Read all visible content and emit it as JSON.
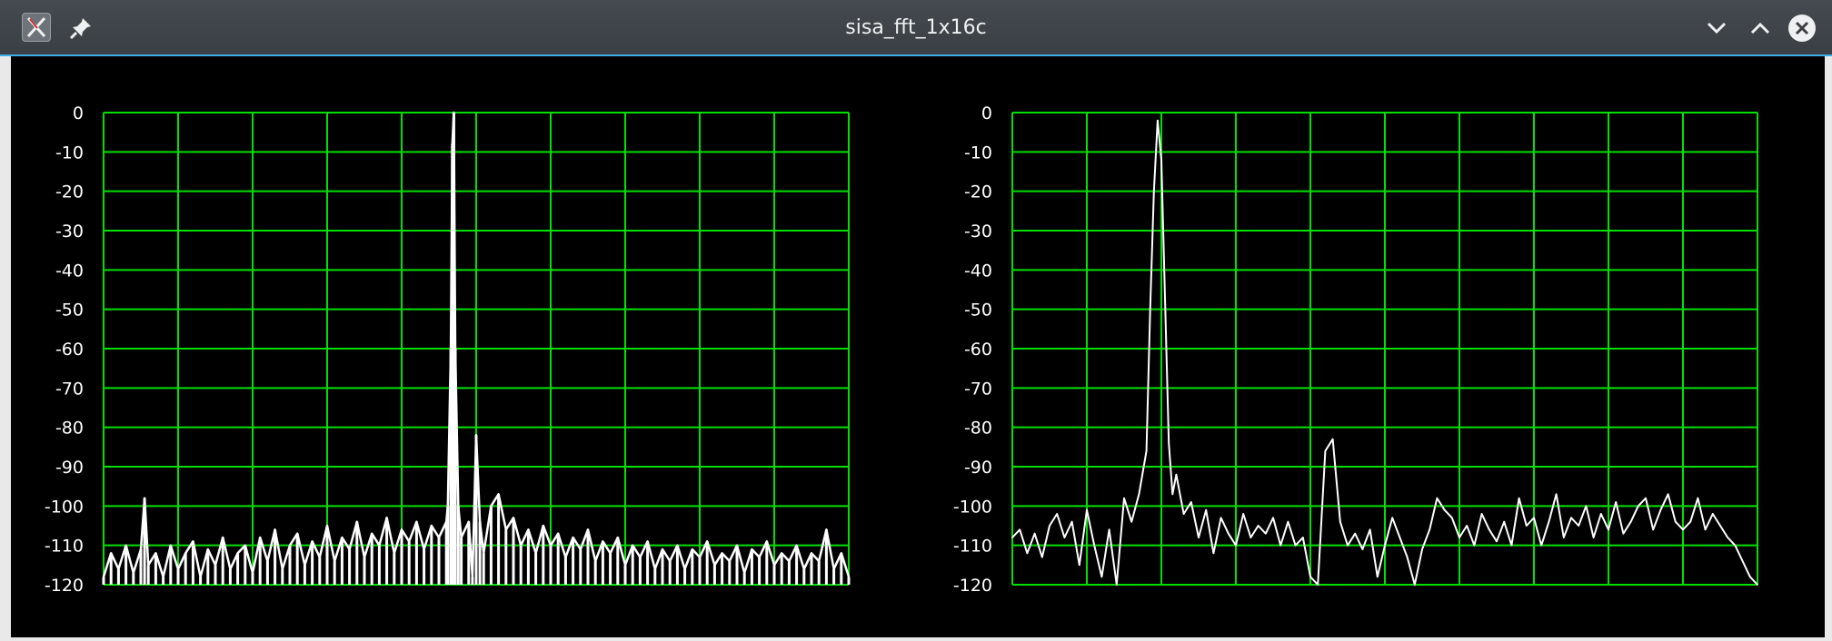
{
  "window": {
    "title": "sisa_fft_1x16c",
    "icons": {
      "app": "x11-app-icon",
      "pin": "pin-icon",
      "minimize": "chevron-down-icon",
      "maximize": "chevron-up-icon",
      "close": "close-circle-icon"
    }
  },
  "colors": {
    "background": "#000000",
    "grid": "#00e000",
    "trace": "#ffffff",
    "axis_text": "#ffffff"
  },
  "chart_data": [
    {
      "type": "line",
      "title": "",
      "xlabel": "",
      "ylabel": "",
      "grid": true,
      "y_ticks": [
        "0",
        "-10",
        "-20",
        "-30",
        "-40",
        "-50",
        "-60",
        "-70",
        "-80",
        "-90",
        "-100",
        "-110",
        "-120"
      ],
      "ylim": [
        -120,
        0
      ],
      "xlim": [
        0,
        1
      ],
      "x_divisions": 10,
      "description_series": "dense noise floor around -110 dB, narrow peak near x=0.47 reaching 0 dB, secondary spur near x=0.50 at -82 dB",
      "series": [
        {
          "x": [
            0.0,
            0.01,
            0.02,
            0.03,
            0.04,
            0.05,
            0.055,
            0.06,
            0.07,
            0.08,
            0.09,
            0.1,
            0.11,
            0.12,
            0.13,
            0.14,
            0.15,
            0.16,
            0.17,
            0.18,
            0.19,
            0.2,
            0.21,
            0.22,
            0.23,
            0.24,
            0.25,
            0.26,
            0.27,
            0.28,
            0.29,
            0.3,
            0.31,
            0.32,
            0.33,
            0.34,
            0.35,
            0.36,
            0.37,
            0.38,
            0.39,
            0.4,
            0.41,
            0.42,
            0.43,
            0.44,
            0.45,
            0.46,
            0.462,
            0.466,
            0.468,
            0.47,
            0.472,
            0.476,
            0.48,
            0.49,
            0.495,
            0.5,
            0.505,
            0.51,
            0.52,
            0.53,
            0.54,
            0.55,
            0.56,
            0.57,
            0.58,
            0.59,
            0.6,
            0.61,
            0.62,
            0.63,
            0.64,
            0.65,
            0.66,
            0.67,
            0.68,
            0.69,
            0.7,
            0.71,
            0.72,
            0.73,
            0.74,
            0.75,
            0.76,
            0.77,
            0.78,
            0.79,
            0.8,
            0.81,
            0.82,
            0.83,
            0.84,
            0.85,
            0.86,
            0.87,
            0.88,
            0.89,
            0.9,
            0.91,
            0.92,
            0.93,
            0.94,
            0.95,
            0.96,
            0.97,
            0.98,
            0.99,
            1.0
          ],
          "y": [
            -118,
            -112,
            -116,
            -110,
            -117,
            -111,
            -98,
            -115,
            -112,
            -118,
            -110,
            -116,
            -112,
            -109,
            -118,
            -111,
            -115,
            -108,
            -116,
            -112,
            -110,
            -117,
            -108,
            -114,
            -106,
            -116,
            -110,
            -107,
            -115,
            -109,
            -113,
            -105,
            -114,
            -108,
            -111,
            -104,
            -113,
            -107,
            -110,
            -103,
            -112,
            -106,
            -109,
            -104,
            -111,
            -105,
            -108,
            -104,
            -100,
            -60,
            -8,
            0,
            -60,
            -100,
            -108,
            -104,
            -118,
            -82,
            -104,
            -112,
            -100,
            -97,
            -106,
            -103,
            -110,
            -106,
            -112,
            -105,
            -110,
            -107,
            -113,
            -108,
            -111,
            -106,
            -114,
            -109,
            -112,
            -108,
            -115,
            -110,
            -113,
            -109,
            -116,
            -111,
            -114,
            -110,
            -116,
            -111,
            -113,
            -109,
            -115,
            -112,
            -114,
            -110,
            -117,
            -111,
            -113,
            -109,
            -115,
            -112,
            -114,
            -110,
            -116,
            -112,
            -114,
            -106,
            -116,
            -112,
            -118
          ]
        }
      ]
    },
    {
      "type": "line",
      "title": "",
      "xlabel": "",
      "ylabel": "",
      "grid": true,
      "y_ticks": [
        "0",
        "-10",
        "-20",
        "-30",
        "-40",
        "-50",
        "-60",
        "-70",
        "-80",
        "-90",
        "-100",
        "-110",
        "-120"
      ],
      "ylim": [
        -120,
        0
      ],
      "xlim": [
        0,
        1
      ],
      "x_divisions": 10,
      "series": [
        {
          "x": [
            0.0,
            0.01,
            0.02,
            0.03,
            0.04,
            0.05,
            0.06,
            0.07,
            0.08,
            0.09,
            0.1,
            0.11,
            0.12,
            0.13,
            0.14,
            0.15,
            0.16,
            0.17,
            0.18,
            0.185,
            0.19,
            0.195,
            0.2,
            0.205,
            0.21,
            0.215,
            0.22,
            0.23,
            0.24,
            0.25,
            0.26,
            0.27,
            0.28,
            0.29,
            0.3,
            0.31,
            0.32,
            0.33,
            0.34,
            0.35,
            0.36,
            0.37,
            0.38,
            0.39,
            0.4,
            0.41,
            0.42,
            0.43,
            0.44,
            0.45,
            0.46,
            0.47,
            0.48,
            0.49,
            0.5,
            0.51,
            0.52,
            0.53,
            0.54,
            0.55,
            0.56,
            0.57,
            0.58,
            0.59,
            0.6,
            0.61,
            0.62,
            0.63,
            0.64,
            0.65,
            0.66,
            0.67,
            0.68,
            0.69,
            0.7,
            0.71,
            0.72,
            0.73,
            0.74,
            0.75,
            0.76,
            0.77,
            0.78,
            0.79,
            0.8,
            0.81,
            0.82,
            0.83,
            0.84,
            0.85,
            0.86,
            0.87,
            0.88,
            0.89,
            0.9,
            0.91,
            0.92,
            0.93,
            0.94,
            0.95,
            0.96,
            0.97,
            0.98,
            0.99,
            1.0
          ],
          "y": [
            -108,
            -106,
            -112,
            -107,
            -113,
            -105,
            -102,
            -108,
            -104,
            -115,
            -101,
            -110,
            -118,
            -106,
            -120,
            -98,
            -104,
            -97,
            -86,
            -50,
            -20,
            -2,
            -12,
            -48,
            -84,
            -97,
            -92,
            -102,
            -99,
            -108,
            -101,
            -112,
            -103,
            -107,
            -110,
            -102,
            -108,
            -105,
            -107,
            -103,
            -110,
            -104,
            -110,
            -108,
            -118,
            -120,
            -86,
            -83,
            -104,
            -110,
            -107,
            -111,
            -106,
            -118,
            -110,
            -103,
            -108,
            -113,
            -120,
            -111,
            -106,
            -98,
            -101,
            -103,
            -108,
            -105,
            -110,
            -102,
            -106,
            -109,
            -104,
            -110,
            -98,
            -105,
            -103,
            -110,
            -104,
            -97,
            -108,
            -103,
            -105,
            -100,
            -108,
            -102,
            -106,
            -99,
            -107,
            -104,
            -100,
            -98,
            -106,
            -101,
            -97,
            -104,
            -106,
            -104,
            -98,
            -106,
            -102,
            -105,
            -108,
            -110,
            -114,
            -118,
            -120
          ]
        }
      ]
    }
  ]
}
